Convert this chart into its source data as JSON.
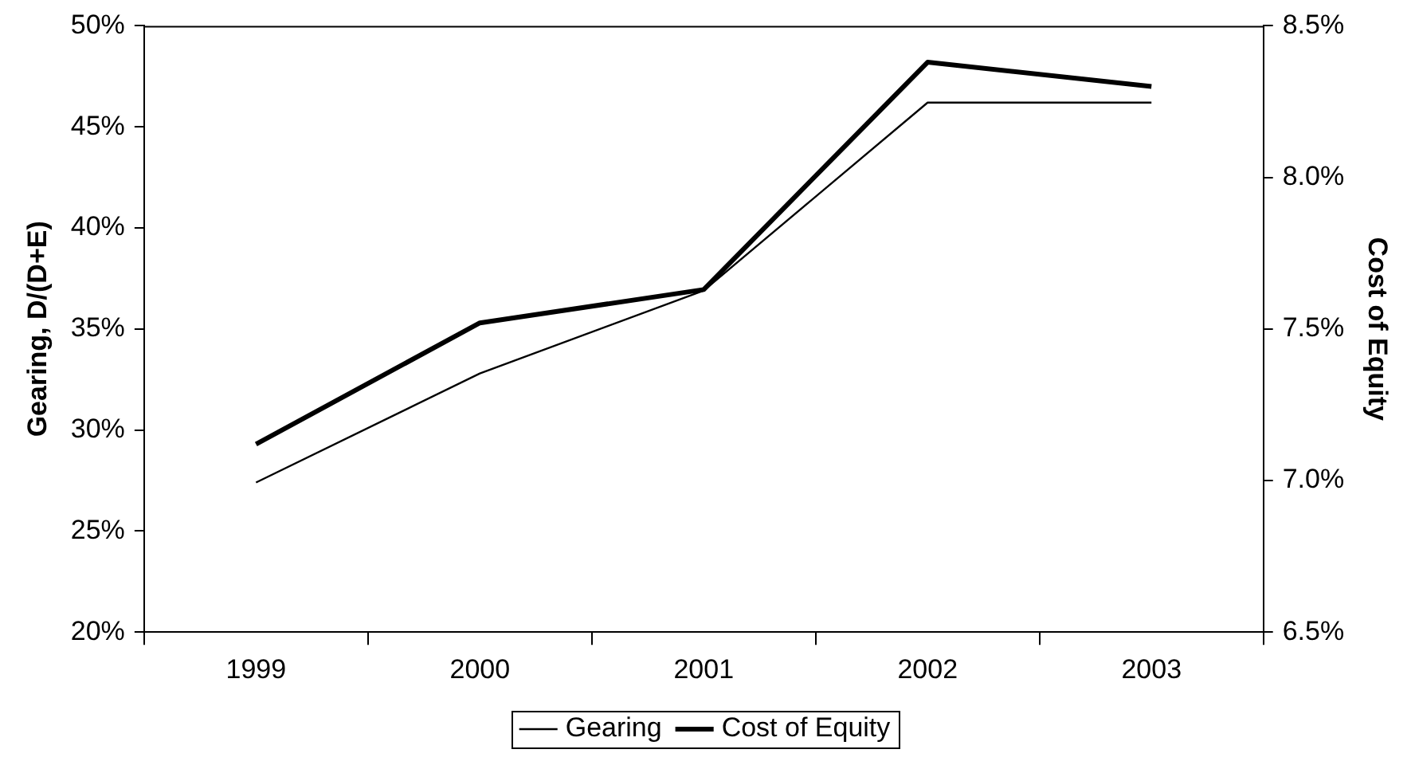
{
  "chart_data": {
    "type": "line",
    "categories": [
      "1999",
      "2000",
      "2001",
      "2002",
      "2003"
    ],
    "series": [
      {
        "name": "Gearing",
        "color": "#000000",
        "values": [
          27.4,
          32.8,
          36.9,
          46.2,
          46.2
        ]
      },
      {
        "name": "Cost of Equity",
        "color": "#000000",
        "axis": "y2",
        "values": [
          7.12,
          7.52,
          7.63,
          8.38,
          8.3
        ]
      }
    ],
    "ylabel": "Gearing, D/(D+E)",
    "y2label": "Cost of Equity",
    "ylim": [
      20,
      50
    ],
    "yticks": [
      {
        "value": 20,
        "label": "20%"
      },
      {
        "value": 25,
        "label": "25%"
      },
      {
        "value": 30,
        "label": "30%"
      },
      {
        "value": 35,
        "label": "35%"
      },
      {
        "value": 40,
        "label": "40%"
      },
      {
        "value": 45,
        "label": "45%"
      },
      {
        "value": 50,
        "label": "50%"
      }
    ],
    "y2lim": [
      6.5,
      8.5
    ],
    "y2ticks": [
      {
        "value": 6.5,
        "label": "6.5%"
      },
      {
        "value": 7,
        "label": "7.0%"
      },
      {
        "value": 7.5,
        "label": "7.5%"
      },
      {
        "value": 8,
        "label": "8.0%"
      },
      {
        "value": 8.5,
        "label": "8.5%"
      }
    ],
    "grid": false,
    "legend": "bottom",
    "marker": "none",
    "line_style": "solid"
  }
}
